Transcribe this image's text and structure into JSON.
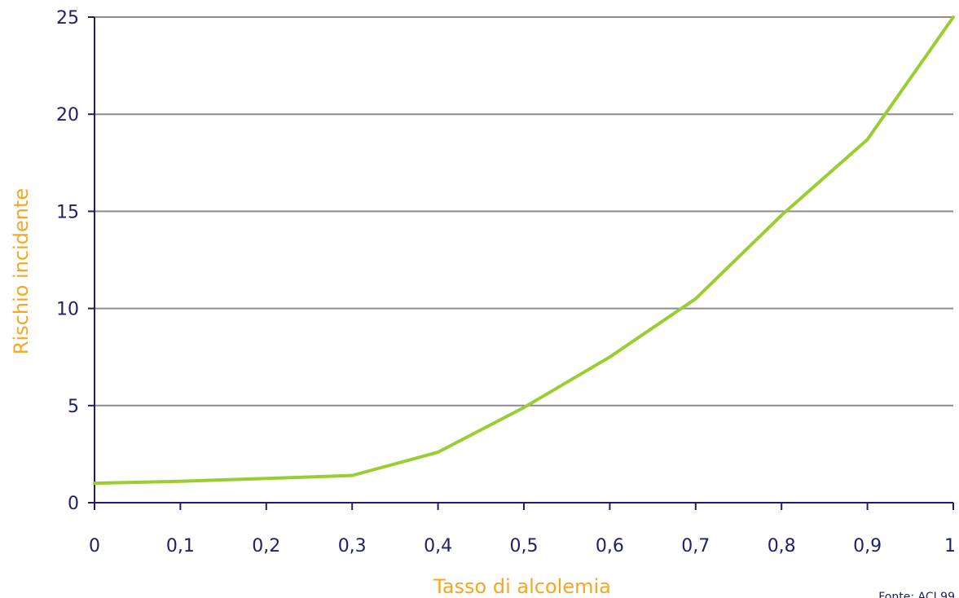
{
  "chart_data": {
    "type": "line",
    "title": "",
    "xlabel": "Tasso di alcolemia",
    "ylabel": "Rischio incidente",
    "x": [
      0,
      0.1,
      0.2,
      0.3,
      0.4,
      0.5,
      0.6,
      0.7,
      0.8,
      0.9,
      1.0
    ],
    "x_tick_labels": [
      "0",
      "0,1",
      "0,2",
      "0,3",
      "0,4",
      "0,5",
      "0,6",
      "0,7",
      "0,8",
      "0,9",
      "1"
    ],
    "xlim": [
      0,
      1
    ],
    "y_ticks": [
      0,
      5,
      10,
      15,
      20,
      25
    ],
    "ylim": [
      0,
      25
    ],
    "grid": "horizontal",
    "series": [
      {
        "values": [
          1.0,
          1.1,
          1.25,
          1.4,
          2.6,
          4.9,
          7.5,
          10.5,
          14.8,
          18.7,
          25.0
        ]
      }
    ],
    "source_note": "Fonte: ACI 99"
  },
  "colors": {
    "line": "#9acd32",
    "axis_text": "#1f1f6b",
    "axis_title": "#f5a623",
    "grid": "#8c8c8c",
    "axis": "#1f1f6b"
  }
}
